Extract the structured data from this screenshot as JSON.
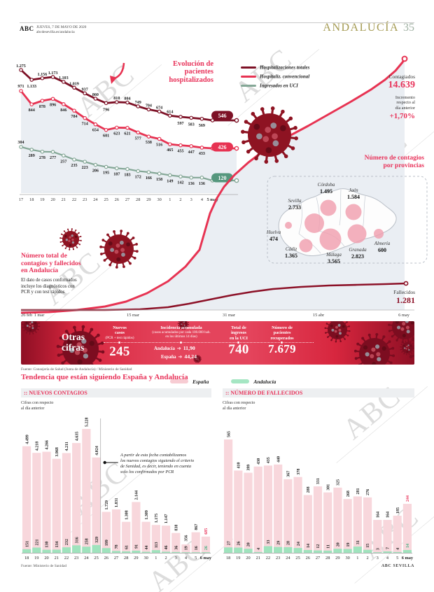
{
  "page": {
    "watermark": "ABC"
  },
  "header": {
    "brand": "ABC",
    "date_line": "JUEVES, 7 DE MAYO DE 2020",
    "site_line": "abcdesevilla.es/andalucia",
    "section": "ANDALUCÍA",
    "page_number": "35"
  },
  "hospital": {
    "title": "Evolución de\npacientes\nhospitalizados",
    "badges": [
      "546",
      "426",
      "120"
    ]
  },
  "contagiados": {
    "label": "Contagiados",
    "value": "14.639",
    "increment_label": "Incremento\nrespecto al\ndía anterior",
    "increment_value": "+1,70%"
  },
  "fallecidos": {
    "label": "Fallecidos",
    "value": "1.281"
  },
  "totals_note": {
    "title": "Número total de\ncontagios y fallecidos\nen Andalucía",
    "body": "El dato de casos confirmados\nincluye los diagnósticos con\nPCR y con test rápidos"
  },
  "map_title": "Número de contagios\npor  provincias",
  "banner": {
    "title": "Otras\ncifras",
    "items": [
      {
        "label": "Nuevos\ncasos",
        "sublabel": "(PCR + test rápidos)",
        "value": "245"
      },
      {
        "label": "Incidencia acumulada",
        "sublabel": "(casos acumulados por cada 100.000 hab.\nen los últimos 14 días)",
        "rows": [
          {
            "name": "Andalucía",
            "value": "11,90"
          },
          {
            "name": "España",
            "value": "44,24"
          }
        ]
      },
      {
        "label": "Total de\ningresos\nen la UCI",
        "value": "740"
      },
      {
        "label": "Número de\npacientes\nrecuperados",
        "value": "7.679"
      }
    ]
  },
  "sources": {
    "main": "Fuente: Consejería de Salud (Junta de Andalucía) / Ministerio de Sanidad",
    "bars": "Fuente: Ministerio de Sanidad",
    "credit": "ABC SEVILLA"
  },
  "tendencia": {
    "title": "Tendencia que están siguiendo España y Andalucía",
    "legend": [
      {
        "label": "España",
        "color": "#f7ccd3"
      },
      {
        "label": "Andalucía",
        "color": "#a5e6c3"
      }
    ]
  },
  "chart_data": [
    {
      "id": "evolucion-hospitalizados",
      "type": "line",
      "title": "Evolución de pacientes hospitalizados",
      "categories": [
        "17",
        "18",
        "19",
        "20",
        "21",
        "22",
        "23",
        "24",
        "25",
        "26",
        "27",
        "28",
        "29",
        "30",
        "1",
        "2",
        "3",
        "4",
        "5 may"
      ],
      "series": [
        {
          "name": "Hospitalizaciones totales",
          "color": "#7d1126",
          "values": [
            1275,
            1133,
            1156,
            1173,
            1103,
            1019,
            937,
            860,
            796,
            810,
            804,
            749,
            704,
            674,
            614,
            597,
            583,
            569,
            546
          ]
        },
        {
          "name": "Hospitaliz. convencional",
          "color": "#e73352",
          "values": [
            971,
            844,
            878,
            896,
            846,
            784,
            714,
            654,
            601,
            623,
            621,
            577,
            538,
            516,
            465,
            455,
            447,
            433,
            426
          ]
        },
        {
          "name": "Ingresados en UCI",
          "color": "#84a796",
          "values": [
            304,
            289,
            278,
            277,
            257,
            235,
            223,
            206,
            195,
            187,
            183,
            172,
            166,
            158,
            149,
            142,
            136,
            136,
            120
          ]
        }
      ],
      "legend_position": "top-right"
    },
    {
      "id": "acumulados-andalucia",
      "type": "area",
      "title": "Número total de contagios y fallecidos en Andalucía",
      "x_ticks": [
        "26 feb",
        "1 mar",
        "15 mar",
        "31 mar",
        "15 abr",
        "6 may"
      ],
      "series": [
        {
          "name": "Contagiados",
          "final_value": 14639,
          "increment": "+1,70%"
        },
        {
          "name": "Fallecidos",
          "final_value": 1281
        }
      ]
    },
    {
      "id": "contagios-por-provincias",
      "type": "bubble-map",
      "title": "Número de contagios por provincias",
      "provinces": [
        {
          "name": "Sevilla",
          "value": 2733
        },
        {
          "name": "Córdoba",
          "value": 1495
        },
        {
          "name": "Jaén",
          "value": 1584
        },
        {
          "name": "Huelva",
          "value": 474
        },
        {
          "name": "Cádiz",
          "value": 1365
        },
        {
          "name": "Málaga",
          "value": 3565
        },
        {
          "name": "Granada",
          "value": 2823
        },
        {
          "name": "Almería",
          "value": 600
        }
      ]
    },
    {
      "id": "nuevos-contagios",
      "type": "bar",
      "title": ":: NUEVOS CONTAGIOS",
      "subtitle": "Cifras con respecto\nal día anterior",
      "categories": [
        "18",
        "19",
        "20",
        "21",
        "22",
        "23",
        "24",
        "25",
        "26",
        "27",
        "28",
        "29",
        "30",
        "1",
        "2",
        "3",
        "4",
        "5",
        "6 may"
      ],
      "series": [
        {
          "name": "España",
          "color": "#f8d7dc",
          "values": [
            4499,
            4218,
            4266,
            3968,
            4211,
            4635,
            5228,
            4024,
            1729,
            1831,
            1308,
            2144,
            1309,
            1175,
            1147,
            838,
            356,
            867,
            685
          ]
        },
        {
          "name": "Andalucía",
          "color": "#9fe3bd",
          "values": [
            151,
            221,
            130,
            134,
            232,
            316,
            258,
            329,
            199,
            78,
            61,
            91,
            44,
            113,
            46,
            36,
            19,
            16,
            26
          ]
        }
      ],
      "annotation": "A partir de esta fecha contabilizamos\nlos  nuevos contagios siguiendo el  criterio\nde Sanidad, es decir, teniendo en cuenta\nsolo los confirmados por PCR"
    },
    {
      "id": "numero-de-fallecidos",
      "type": "bar",
      "title": ":: NÚMERO DE FALLECIDOS",
      "subtitle": "Cifras con respecto\nal día anterior",
      "categories": [
        "18",
        "19",
        "20",
        "21",
        "22",
        "23",
        "24",
        "25",
        "26",
        "27",
        "28",
        "29",
        "30",
        "1",
        "2",
        "3",
        "4",
        "5",
        "6 may"
      ],
      "series": [
        {
          "name": "España",
          "color": "#f8d7dc",
          "values": [
            565,
            410,
            399,
            430,
            435,
            440,
            367,
            378,
            288,
            331,
            301,
            325,
            268,
            281,
            276,
            164,
            164,
            185,
            244
          ]
        },
        {
          "name": "Andalucía",
          "color": "#9fe3bd",
          "values": [
            27,
            26,
            20,
            4,
            33,
            29,
            28,
            24,
            14,
            12,
            11,
            20,
            19,
            31,
            15,
            3,
            7,
            4,
            14
          ]
        }
      ]
    }
  ]
}
